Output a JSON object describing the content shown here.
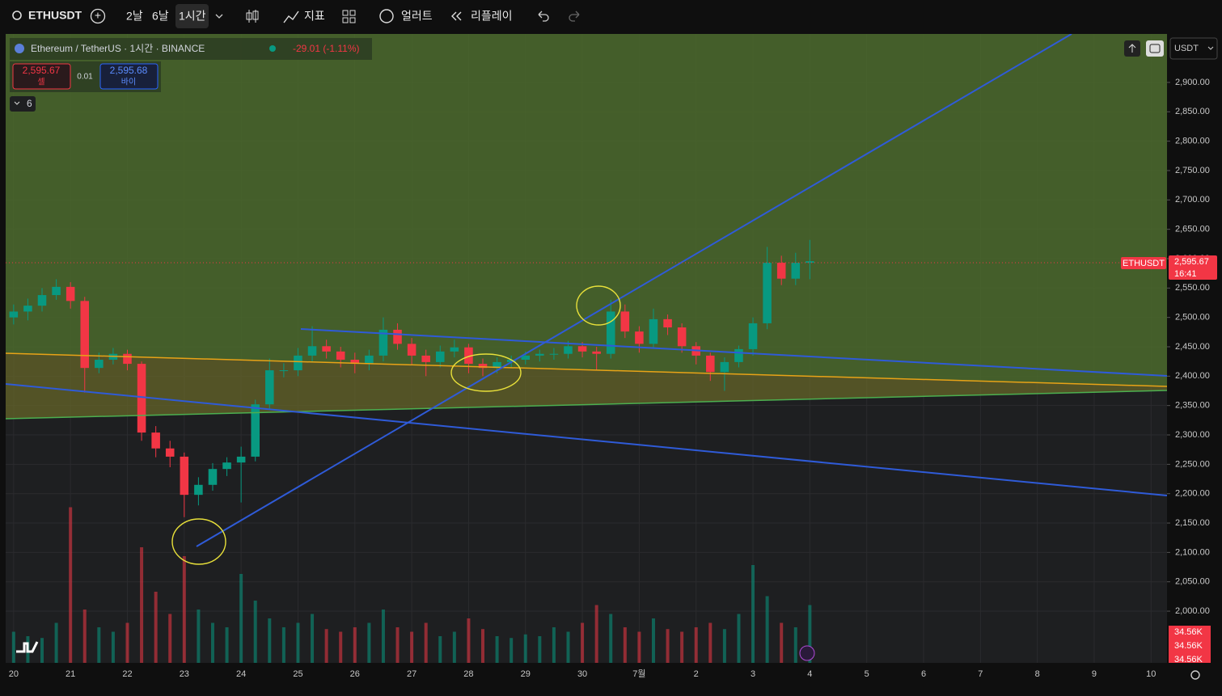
{
  "toolbar": {
    "symbol": "ETHUSDT",
    "intervals": [
      "2날",
      "6날",
      "1시간"
    ],
    "indicators": "지표",
    "alerts": "얼러트",
    "replay": "리플레이"
  },
  "legend": {
    "title": "Ethereum / TetherUS · 1시간 · BINANCE",
    "change": "-29.01 (-1.11%)",
    "sell_price": "2,595.67",
    "sell_label": "셀",
    "spread": "0.01",
    "buy_price": "2,595.68",
    "buy_label": "바이",
    "indicator_count": 6
  },
  "price_scale": {
    "currency": "USDT",
    "symbol_tag": "ETHUSDT",
    "last_price": "2,595.67",
    "countdown": "16:41",
    "volume_labels": [
      "34.56K",
      "34.56K",
      "34.56K"
    ]
  },
  "chart_data": {
    "type": "candlestick",
    "up_color": "#089981",
    "down_color": "#f23645",
    "grid": true,
    "x": [
      0,
      0.25,
      0.5,
      0.75,
      1,
      1.25,
      1.5,
      1.75,
      2,
      2.25,
      2.5,
      2.75,
      3,
      3.25,
      3.5,
      3.75,
      4,
      4.25,
      4.5,
      4.75,
      5,
      5.25,
      5.5,
      5.75,
      6,
      6.25,
      6.5,
      6.75,
      7,
      7.25,
      7.5,
      7.75,
      8,
      8.25,
      8.5,
      8.75,
      9,
      9.25,
      9.5,
      9.75,
      10,
      10.25,
      10.5,
      10.75,
      11,
      11.25,
      11.5,
      11.75,
      12,
      12.25,
      12.5,
      12.75,
      13,
      13.25,
      13.5,
      13.75,
      14
    ],
    "open": [
      2500,
      2510,
      2520,
      2538,
      2552,
      2528,
      2414,
      2428,
      2438,
      2421,
      2304,
      2277,
      2263,
      2198,
      2215,
      2242,
      2253,
      2263,
      2352,
      2410,
      2410,
      2435,
      2451,
      2442,
      2428,
      2421,
      2435,
      2479,
      2455,
      2435,
      2424,
      2442,
      2449,
      2421,
      2414,
      2424,
      2428,
      2435,
      2438,
      2438,
      2451,
      2442,
      2438,
      2510,
      2476,
      2455,
      2497,
      2483,
      2451,
      2435,
      2407,
      2424,
      2446,
      2490,
      2593,
      2566,
      2593
    ],
    "high": [
      2522,
      2532,
      2550,
      2565,
      2560,
      2535,
      2440,
      2448,
      2445,
      2425,
      2315,
      2290,
      2270,
      2228,
      2252,
      2262,
      2280,
      2360,
      2430,
      2422,
      2448,
      2485,
      2462,
      2450,
      2440,
      2445,
      2500,
      2490,
      2465,
      2445,
      2452,
      2462,
      2455,
      2430,
      2432,
      2435,
      2442,
      2445,
      2448,
      2460,
      2458,
      2450,
      2530,
      2522,
      2485,
      2515,
      2505,
      2490,
      2458,
      2440,
      2432,
      2452,
      2500,
      2620,
      2605,
      2610,
      2632
    ],
    "low": [
      2488,
      2495,
      2510,
      2530,
      2515,
      2372,
      2405,
      2420,
      2410,
      2290,
      2262,
      2245,
      2160,
      2180,
      2205,
      2230,
      2185,
      2255,
      2345,
      2398,
      2400,
      2425,
      2430,
      2415,
      2405,
      2410,
      2425,
      2445,
      2420,
      2400,
      2415,
      2432,
      2405,
      2400,
      2405,
      2415,
      2420,
      2425,
      2428,
      2430,
      2432,
      2410,
      2430,
      2465,
      2440,
      2448,
      2470,
      2440,
      2420,
      2392,
      2375,
      2415,
      2435,
      2480,
      2555,
      2555,
      2565
    ],
    "close": [
      2510,
      2520,
      2538,
      2552,
      2528,
      2414,
      2428,
      2438,
      2421,
      2304,
      2277,
      2263,
      2198,
      2215,
      2242,
      2253,
      2263,
      2352,
      2410,
      2410,
      2435,
      2451,
      2442,
      2428,
      2421,
      2435,
      2479,
      2455,
      2435,
      2424,
      2442,
      2449,
      2421,
      2414,
      2424,
      2428,
      2435,
      2438,
      2438,
      2451,
      2442,
      2438,
      2510,
      2476,
      2455,
      2497,
      2483,
      2451,
      2435,
      2407,
      2424,
      2446,
      2490,
      2593,
      2566,
      2593,
      2595.67
    ],
    "volume": [
      35,
      30,
      28,
      45,
      175,
      60,
      40,
      35,
      45,
      130,
      80,
      55,
      120,
      60,
      45,
      40,
      100,
      70,
      50,
      40,
      45,
      55,
      38,
      35,
      40,
      45,
      60,
      40,
      35,
      45,
      30,
      35,
      50,
      38,
      30,
      28,
      32,
      30,
      40,
      35,
      45,
      65,
      55,
      40,
      35,
      50,
      38,
      35,
      40,
      45,
      38,
      55,
      110,
      75,
      45,
      40,
      65
    ],
    "vlim": [
      0,
      220
    ],
    "xlim": [
      -0.14,
      20.28
    ],
    "xticks": [
      {
        "value": 0,
        "label": "20"
      },
      {
        "value": 1,
        "label": "21"
      },
      {
        "value": 2,
        "label": "22"
      },
      {
        "value": 3,
        "label": "23"
      },
      {
        "value": 4,
        "label": "24"
      },
      {
        "value": 5,
        "label": "25"
      },
      {
        "value": 6,
        "label": "26"
      },
      {
        "value": 7,
        "label": "27"
      },
      {
        "value": 8,
        "label": "28"
      },
      {
        "value": 9,
        "label": "29"
      },
      {
        "value": 10,
        "label": "30"
      },
      {
        "value": 11,
        "label": "7월"
      },
      {
        "value": 12,
        "label": "2"
      },
      {
        "value": 13,
        "label": "3"
      },
      {
        "value": 14,
        "label": "4"
      },
      {
        "value": 15,
        "label": "5"
      },
      {
        "value": 16,
        "label": "6"
      },
      {
        "value": 17,
        "label": "7"
      },
      {
        "value": 18,
        "label": "8"
      },
      {
        "value": 19,
        "label": "9"
      },
      {
        "value": 20,
        "label": "10"
      }
    ],
    "ylim": [
      1912,
      2977
    ],
    "yticks": [
      {
        "value": 2000,
        "label": "2,000.00"
      },
      {
        "value": 2050,
        "label": "2,050.00"
      },
      {
        "value": 2100,
        "label": "2,100.00"
      },
      {
        "value": 2150,
        "label": "2,150.00"
      },
      {
        "value": 2200,
        "label": "2,200.00"
      },
      {
        "value": 2250,
        "label": "2,250.00"
      },
      {
        "value": 2300,
        "label": "2,300.00"
      },
      {
        "value": 2350,
        "label": "2,350.00"
      },
      {
        "value": 2400,
        "label": "2,400.00"
      },
      {
        "value": 2450,
        "label": "2,450.00"
      },
      {
        "value": 2500,
        "label": "2,500.00"
      },
      {
        "value": 2550,
        "label": "2,550.00"
      },
      {
        "value": 2600,
        "label": "2,600.00"
      },
      {
        "value": 2650,
        "label": "2,650.00"
      },
      {
        "value": 2700,
        "label": "2,700.00"
      },
      {
        "value": 2750,
        "label": "2,750.00"
      },
      {
        "value": 2800,
        "label": "2,800.00"
      },
      {
        "value": 2850,
        "label": "2,850.00"
      },
      {
        "value": 2900,
        "label": "2,900.00"
      }
    ]
  }
}
